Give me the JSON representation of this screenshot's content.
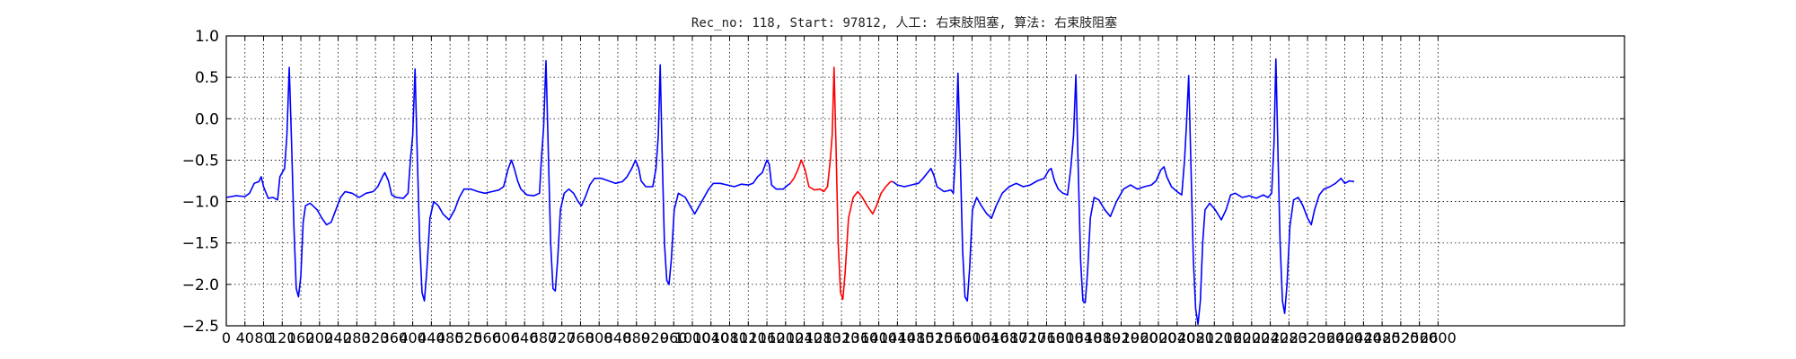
{
  "chart_data": {
    "type": "line",
    "title": "Rec_no: 118, Start: 97812, 人工: 右束肢阻塞, 算法: 右束肢阻塞",
    "xlabel": "",
    "ylabel": "",
    "xlim": [
      0,
      3000
    ],
    "ylim": [
      -2.5,
      1.0
    ],
    "grid": true,
    "y_ticks": [
      1.0,
      0.5,
      0.0,
      -0.5,
      -1.0,
      -1.5,
      -2.0,
      -2.5
    ],
    "y_tick_labels": [
      "1.0",
      "0.5",
      "0.0",
      "−0.5",
      "−1.0",
      "−1.5",
      "−2.0",
      "−2.5"
    ],
    "x_ticks": [
      0,
      40,
      80,
      120,
      160,
      200,
      240,
      280,
      320,
      360,
      400,
      440,
      480,
      520,
      560,
      600,
      640,
      680,
      720,
      760,
      800,
      840,
      880,
      920,
      960,
      1000,
      1040,
      1080,
      1120,
      1160,
      1200,
      1240,
      1280,
      1320,
      1360,
      1400,
      1440,
      1480,
      1520,
      1560,
      1600,
      1640,
      1680,
      1720,
      1760,
      1800,
      1840,
      1880,
      1920,
      1960,
      2000,
      2040,
      2080,
      2120,
      2160,
      2200,
      2240,
      2280,
      2320,
      2360,
      2400,
      2440,
      2480,
      2520,
      2560,
      2600
    ],
    "x_tick_labels": [
      "0",
      "40",
      "80",
      "120",
      "160",
      "200",
      "240",
      "280",
      "320",
      "360",
      "400",
      "440",
      "480",
      "520",
      "560",
      "600",
      "640",
      "680",
      "720",
      "760",
      "800",
      "840",
      "880",
      "920",
      "960",
      "1000",
      "1040",
      "1080",
      "1120",
      "1160",
      "1200",
      "1240",
      "1280",
      "1320",
      "1360",
      "1400",
      "1440",
      "1480",
      "1520",
      "1560",
      "1600",
      "1640",
      "1680",
      "1720",
      "1760",
      "1800",
      "1840",
      "1880",
      "1920",
      "1960",
      "2000",
      "2040",
      "2080",
      "2120",
      "2160",
      "2200",
      "2240",
      "2280",
      "2320",
      "2360",
      "2400",
      "2440",
      "2480",
      "2520",
      "2560",
      "2600"
    ],
    "colors": {
      "signal": "#0000ff",
      "highlight": "#ff0000"
    },
    "highlight_range": [
      1210,
      1430
    ],
    "series": [
      {
        "values": [
          [
            0,
            -0.95
          ],
          [
            20,
            -0.93
          ],
          [
            40,
            -0.94
          ],
          [
            50,
            -0.9
          ],
          [
            60,
            -0.78
          ],
          [
            70,
            -0.76
          ],
          [
            75,
            -0.7
          ],
          [
            80,
            -0.82
          ],
          [
            90,
            -0.96
          ],
          [
            100,
            -0.95
          ],
          [
            110,
            -0.98
          ],
          [
            115,
            -0.7
          ],
          [
            125,
            -0.6
          ],
          [
            130,
            -0.2
          ],
          [
            135,
            0.62
          ],
          [
            140,
            -0.3
          ],
          [
            145,
            -1.3
          ],
          [
            150,
            -2.05
          ],
          [
            155,
            -2.15
          ],
          [
            160,
            -1.9
          ],
          [
            165,
            -1.25
          ],
          [
            170,
            -1.05
          ],
          [
            180,
            -1.02
          ],
          [
            195,
            -1.1
          ],
          [
            205,
            -1.2
          ],
          [
            215,
            -1.28
          ],
          [
            225,
            -1.25
          ],
          [
            235,
            -1.1
          ],
          [
            245,
            -0.95
          ],
          [
            255,
            -0.88
          ],
          [
            270,
            -0.9
          ],
          [
            285,
            -0.95
          ],
          [
            300,
            -0.9
          ],
          [
            315,
            -0.88
          ],
          [
            325,
            -0.82
          ],
          [
            335,
            -0.7
          ],
          [
            340,
            -0.65
          ],
          [
            348,
            -0.75
          ],
          [
            355,
            -0.92
          ],
          [
            365,
            -0.95
          ],
          [
            380,
            -0.96
          ],
          [
            390,
            -0.9
          ],
          [
            395,
            -0.5
          ],
          [
            400,
            -0.2
          ],
          [
            405,
            0.6
          ],
          [
            410,
            -0.5
          ],
          [
            415,
            -1.5
          ],
          [
            420,
            -2.1
          ],
          [
            425,
            -2.2
          ],
          [
            430,
            -1.85
          ],
          [
            437,
            -1.2
          ],
          [
            445,
            -1.0
          ],
          [
            455,
            -1.05
          ],
          [
            465,
            -1.15
          ],
          [
            478,
            -1.22
          ],
          [
            490,
            -1.1
          ],
          [
            500,
            -0.95
          ],
          [
            510,
            -0.85
          ],
          [
            525,
            -0.85
          ],
          [
            540,
            -0.88
          ],
          [
            555,
            -0.9
          ],
          [
            570,
            -0.88
          ],
          [
            585,
            -0.86
          ],
          [
            595,
            -0.82
          ],
          [
            605,
            -0.6
          ],
          [
            612,
            -0.5
          ],
          [
            618,
            -0.6
          ],
          [
            625,
            -0.75
          ],
          [
            632,
            -0.85
          ],
          [
            645,
            -0.92
          ],
          [
            660,
            -0.93
          ],
          [
            672,
            -0.9
          ],
          [
            676,
            -0.5
          ],
          [
            681,
            -0.1
          ],
          [
            686,
            0.7
          ],
          [
            691,
            -0.4
          ],
          [
            696,
            -1.5
          ],
          [
            701,
            -2.05
          ],
          [
            706,
            -2.08
          ],
          [
            711,
            -1.7
          ],
          [
            717,
            -1.1
          ],
          [
            725,
            -0.9
          ],
          [
            735,
            -0.85
          ],
          [
            745,
            -0.9
          ],
          [
            755,
            -1.0
          ],
          [
            762,
            -1.05
          ],
          [
            770,
            -0.95
          ],
          [
            780,
            -0.8
          ],
          [
            790,
            -0.72
          ],
          [
            805,
            -0.72
          ],
          [
            820,
            -0.75
          ],
          [
            835,
            -0.78
          ],
          [
            850,
            -0.76
          ],
          [
            860,
            -0.7
          ],
          [
            870,
            -0.6
          ],
          [
            878,
            -0.5
          ],
          [
            885,
            -0.6
          ],
          [
            890,
            -0.75
          ],
          [
            900,
            -0.82
          ],
          [
            915,
            -0.82
          ],
          [
            922,
            -0.6
          ],
          [
            927,
            -0.2
          ],
          [
            931,
            0.65
          ],
          [
            935,
            -0.4
          ],
          [
            940,
            -1.5
          ],
          [
            945,
            -1.95
          ],
          [
            950,
            -2.0
          ],
          [
            955,
            -1.7
          ],
          [
            961,
            -1.1
          ],
          [
            970,
            -0.9
          ],
          [
            985,
            -0.95
          ],
          [
            995,
            -1.05
          ],
          [
            1005,
            -1.15
          ],
          [
            1015,
            -1.05
          ],
          [
            1025,
            -0.95
          ],
          [
            1035,
            -0.85
          ],
          [
            1045,
            -0.78
          ],
          [
            1060,
            -0.78
          ],
          [
            1075,
            -0.8
          ],
          [
            1090,
            -0.82
          ],
          [
            1105,
            -0.79
          ],
          [
            1120,
            -0.8
          ],
          [
            1130,
            -0.78
          ],
          [
            1140,
            -0.7
          ],
          [
            1150,
            -0.65
          ],
          [
            1160,
            -0.5
          ],
          [
            1165,
            -0.55
          ],
          [
            1170,
            -0.8
          ],
          [
            1180,
            -0.85
          ],
          [
            1195,
            -0.85
          ],
          [
            1205,
            -0.8
          ],
          [
            1210,
            -0.78
          ],
          [
            1218,
            -0.72
          ],
          [
            1226,
            -0.62
          ],
          [
            1234,
            -0.5
          ],
          [
            1242,
            -0.62
          ],
          [
            1250,
            -0.82
          ],
          [
            1262,
            -0.86
          ],
          [
            1274,
            -0.85
          ],
          [
            1282,
            -0.88
          ],
          [
            1290,
            -0.82
          ],
          [
            1296,
            -0.5
          ],
          [
            1300,
            -0.2
          ],
          [
            1304,
            0.62
          ],
          [
            1308,
            -0.3
          ],
          [
            1313,
            -1.5
          ],
          [
            1318,
            -2.1
          ],
          [
            1323,
            -2.18
          ],
          [
            1328,
            -1.85
          ],
          [
            1335,
            -1.2
          ],
          [
            1345,
            -0.95
          ],
          [
            1355,
            -0.88
          ],
          [
            1365,
            -0.95
          ],
          [
            1375,
            -1.05
          ],
          [
            1387,
            -1.15
          ],
          [
            1395,
            -1.05
          ],
          [
            1405,
            -0.9
          ],
          [
            1415,
            -0.82
          ],
          [
            1425,
            -0.76
          ],
          [
            1430,
            -0.76
          ],
          [
            1440,
            -0.8
          ],
          [
            1455,
            -0.82
          ],
          [
            1470,
            -0.8
          ],
          [
            1485,
            -0.78
          ],
          [
            1495,
            -0.72
          ],
          [
            1505,
            -0.65
          ],
          [
            1512,
            -0.6
          ],
          [
            1518,
            -0.68
          ],
          [
            1525,
            -0.82
          ],
          [
            1540,
            -0.88
          ],
          [
            1555,
            -0.86
          ],
          [
            1560,
            -0.9
          ],
          [
            1565,
            -0.4
          ],
          [
            1570,
            0.55
          ],
          [
            1575,
            -0.5
          ],
          [
            1580,
            -1.6
          ],
          [
            1585,
            -2.15
          ],
          [
            1590,
            -2.2
          ],
          [
            1595,
            -1.8
          ],
          [
            1601,
            -1.1
          ],
          [
            1610,
            -0.95
          ],
          [
            1620,
            -1.05
          ],
          [
            1632,
            -1.15
          ],
          [
            1642,
            -1.2
          ],
          [
            1652,
            -1.05
          ],
          [
            1665,
            -0.9
          ],
          [
            1680,
            -0.82
          ],
          [
            1695,
            -0.78
          ],
          [
            1710,
            -0.82
          ],
          [
            1725,
            -0.8
          ],
          [
            1740,
            -0.75
          ],
          [
            1755,
            -0.72
          ],
          [
            1765,
            -0.62
          ],
          [
            1770,
            -0.6
          ],
          [
            1777,
            -0.75
          ],
          [
            1785,
            -0.85
          ],
          [
            1795,
            -0.9
          ],
          [
            1805,
            -0.92
          ],
          [
            1812,
            -0.6
          ],
          [
            1818,
            -0.2
          ],
          [
            1823,
            0.53
          ],
          [
            1828,
            -0.6
          ],
          [
            1833,
            -1.7
          ],
          [
            1838,
            -2.2
          ],
          [
            1843,
            -2.22
          ],
          [
            1848,
            -1.85
          ],
          [
            1854,
            -1.2
          ],
          [
            1862,
            -0.95
          ],
          [
            1872,
            -0.98
          ],
          [
            1885,
            -1.1
          ],
          [
            1897,
            -1.18
          ],
          [
            1910,
            -1.0
          ],
          [
            1925,
            -0.85
          ],
          [
            1940,
            -0.8
          ],
          [
            1955,
            -0.85
          ],
          [
            1970,
            -0.82
          ],
          [
            1985,
            -0.8
          ],
          [
            1995,
            -0.75
          ],
          [
            2005,
            -0.62
          ],
          [
            2012,
            -0.58
          ],
          [
            2018,
            -0.7
          ],
          [
            2028,
            -0.82
          ],
          [
            2040,
            -0.88
          ],
          [
            2050,
            -0.92
          ],
          [
            2056,
            -0.5
          ],
          [
            2060,
            -0.1
          ],
          [
            2065,
            0.52
          ],
          [
            2070,
            -0.6
          ],
          [
            2075,
            -1.7
          ],
          [
            2080,
            -2.3
          ],
          [
            2085,
            -2.48
          ],
          [
            2090,
            -2.2
          ],
          [
            2095,
            -1.5
          ],
          [
            2100,
            -1.1
          ],
          [
            2110,
            -1.02
          ],
          [
            2122,
            -1.1
          ],
          [
            2135,
            -1.22
          ],
          [
            2145,
            -1.1
          ],
          [
            2155,
            -0.92
          ],
          [
            2165,
            -0.9
          ],
          [
            2180,
            -0.95
          ],
          [
            2195,
            -0.93
          ],
          [
            2210,
            -0.96
          ],
          [
            2225,
            -0.92
          ],
          [
            2235,
            -0.95
          ],
          [
            2243,
            -0.9
          ],
          [
            2248,
            -0.3
          ],
          [
            2252,
            0.72
          ],
          [
            2256,
            -0.3
          ],
          [
            2261,
            -1.5
          ],
          [
            2266,
            -2.2
          ],
          [
            2271,
            -2.35
          ],
          [
            2276,
            -2.0
          ],
          [
            2282,
            -1.3
          ],
          [
            2290,
            -0.98
          ],
          [
            2300,
            -0.95
          ],
          [
            2310,
            -1.05
          ],
          [
            2320,
            -1.2
          ],
          [
            2328,
            -1.28
          ],
          [
            2335,
            -1.1
          ],
          [
            2345,
            -0.92
          ],
          [
            2355,
            -0.85
          ],
          [
            2368,
            -0.82
          ],
          [
            2380,
            -0.78
          ],
          [
            2392,
            -0.72
          ],
          [
            2400,
            -0.78
          ],
          [
            2410,
            -0.75
          ],
          [
            2420,
            -0.76
          ]
        ]
      }
    ]
  }
}
